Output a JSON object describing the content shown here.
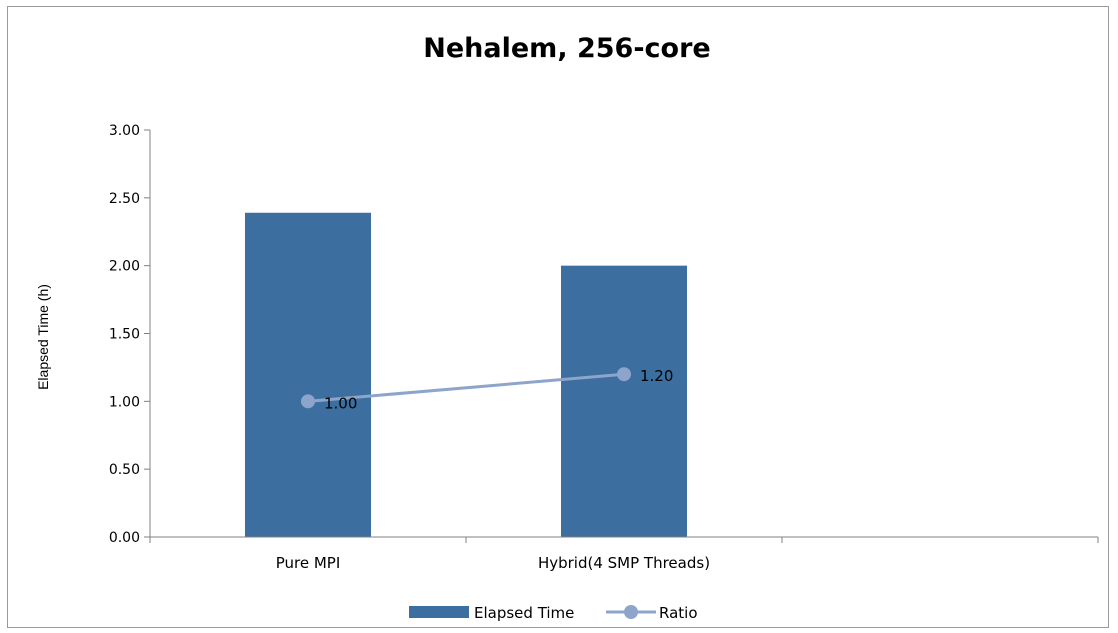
{
  "chart_data": {
    "type": "bar",
    "title": "Nehalem, 256-core",
    "ylabel": "Elapsed Time (h)",
    "xlabel": "",
    "ylim": [
      0,
      3
    ],
    "yticks": [
      "0.00",
      "0.50",
      "1.00",
      "1.50",
      "2.00",
      "2.50",
      "3.00"
    ],
    "categories": [
      "Pure MPI",
      "Hybrid(4 SMP Threads)"
    ],
    "series": [
      {
        "name": "Elapsed Time",
        "type": "bar",
        "values": [
          2.39,
          2.0
        ],
        "color": "#3C6E9F"
      },
      {
        "name": "Ratio",
        "type": "line",
        "values": [
          1.0,
          1.2
        ],
        "labels": [
          "1.00",
          "1.20"
        ],
        "color": "#8EA5CB"
      }
    ],
    "legend": {
      "position": "bottom",
      "items": [
        "Elapsed Time",
        "Ratio"
      ]
    },
    "grid": false
  }
}
